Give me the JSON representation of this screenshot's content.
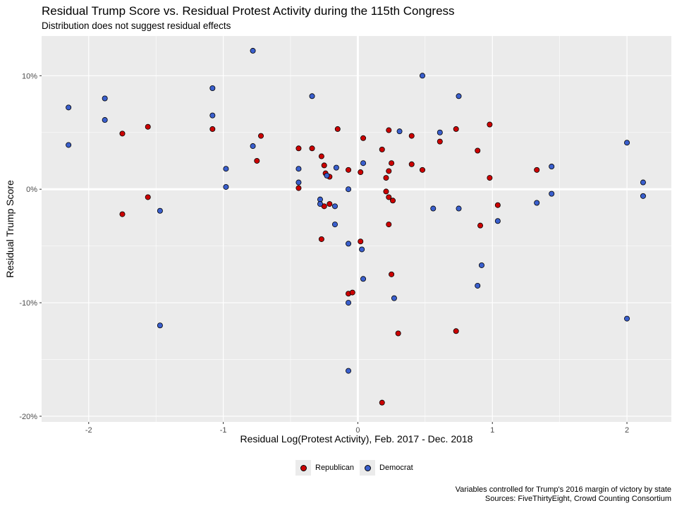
{
  "title": "Residual Trump Score vs. Residual Protest Activity during the 115th Congress",
  "subtitle": "Distribution does not suggest residual effects",
  "caption": {
    "line1": "Variables controlled for Trump's 2016 margin of victory by state",
    "line2": "Sources: FiveThirtyEight, Crowd Counting Consortium"
  },
  "chart_data": {
    "type": "scatter",
    "xlabel": "Residual Log(Protest Activity), Feb. 2017 - Dec. 2018",
    "ylabel": "Residual Trump Score",
    "xlim": [
      -2.35,
      2.33
    ],
    "ylim": [
      -0.205,
      0.135
    ],
    "x_ticks": [
      -2,
      -1,
      0,
      1,
      2
    ],
    "x_tick_labels": [
      "-2",
      "-1",
      "0",
      "1",
      "2"
    ],
    "y_ticks": [
      -0.2,
      -0.1,
      0,
      0.1
    ],
    "y_tick_labels": [
      "-20%",
      "-10%",
      "0%",
      "10%"
    ],
    "grid": true,
    "legend_position": "bottom",
    "colors": {
      "Republican": "#cc0000",
      "Democrat": "#3a5fcd",
      "panel": "#ebebeb",
      "grid": "#ffffff"
    },
    "series": [
      {
        "name": "Republican",
        "points": [
          [
            -1.75,
            0.049
          ],
          [
            -1.75,
            -0.022
          ],
          [
            -1.56,
            0.055
          ],
          [
            -1.56,
            -0.007
          ],
          [
            -1.08,
            0.053
          ],
          [
            -0.72,
            0.047
          ],
          [
            -0.75,
            0.025
          ],
          [
            -0.44,
            0.036
          ],
          [
            -0.44,
            0.001
          ],
          [
            -0.34,
            0.036
          ],
          [
            -0.27,
            0.029
          ],
          [
            -0.25,
            0.021
          ],
          [
            -0.24,
            0.014
          ],
          [
            -0.25,
            -0.015
          ],
          [
            -0.21,
            0.011
          ],
          [
            -0.21,
            -0.013
          ],
          [
            -0.27,
            -0.044
          ],
          [
            -0.15,
            0.053
          ],
          [
            -0.07,
            0.017
          ],
          [
            -0.07,
            -0.092
          ],
          [
            -0.04,
            -0.091
          ],
          [
            0.02,
            0.015
          ],
          [
            0.04,
            0.045
          ],
          [
            0.02,
            -0.046
          ],
          [
            0.18,
            0.035
          ],
          [
            0.21,
            0.01
          ],
          [
            0.21,
            -0.002
          ],
          [
            0.23,
            0.052
          ],
          [
            0.23,
            0.016
          ],
          [
            0.25,
            0.023
          ],
          [
            0.23,
            -0.007
          ],
          [
            0.26,
            -0.01
          ],
          [
            0.23,
            -0.031
          ],
          [
            0.25,
            -0.075
          ],
          [
            0.3,
            -0.127
          ],
          [
            0.18,
            -0.188
          ],
          [
            0.4,
            0.047
          ],
          [
            0.4,
            0.022
          ],
          [
            0.48,
            0.017
          ],
          [
            0.61,
            0.042
          ],
          [
            0.73,
            0.053
          ],
          [
            0.73,
            -0.125
          ],
          [
            0.89,
            0.034
          ],
          [
            0.91,
            -0.032
          ],
          [
            0.98,
            0.057
          ],
          [
            0.98,
            0.01
          ],
          [
            1.04,
            -0.014
          ],
          [
            1.33,
            0.017
          ]
        ]
      },
      {
        "name": "Democrat",
        "points": [
          [
            -2.15,
            0.072
          ],
          [
            -2.15,
            0.039
          ],
          [
            -1.88,
            0.08
          ],
          [
            -1.88,
            0.061
          ],
          [
            -1.47,
            -0.019
          ],
          [
            -1.47,
            -0.12
          ],
          [
            -1.08,
            0.089
          ],
          [
            -1.08,
            0.065
          ],
          [
            -0.98,
            0.018
          ],
          [
            -0.98,
            0.002
          ],
          [
            -0.78,
            0.122
          ],
          [
            -0.78,
            0.038
          ],
          [
            -0.34,
            0.082
          ],
          [
            -0.44,
            0.018
          ],
          [
            -0.44,
            0.006
          ],
          [
            -0.28,
            -0.009
          ],
          [
            -0.28,
            -0.013
          ],
          [
            -0.23,
            0.012
          ],
          [
            -0.16,
            0.019
          ],
          [
            -0.17,
            -0.015
          ],
          [
            -0.17,
            -0.031
          ],
          [
            -0.07,
            0.0
          ],
          [
            -0.07,
            -0.048
          ],
          [
            -0.07,
            -0.1
          ],
          [
            -0.07,
            -0.16
          ],
          [
            0.04,
            0.023
          ],
          [
            0.03,
            -0.053
          ],
          [
            0.04,
            -0.079
          ],
          [
            0.27,
            -0.096
          ],
          [
            0.31,
            0.051
          ],
          [
            0.48,
            0.1
          ],
          [
            0.56,
            -0.017
          ],
          [
            0.61,
            0.05
          ],
          [
            0.75,
            0.082
          ],
          [
            0.75,
            -0.017
          ],
          [
            0.92,
            -0.067
          ],
          [
            0.89,
            -0.085
          ],
          [
            1.04,
            -0.028
          ],
          [
            1.33,
            -0.012
          ],
          [
            1.44,
            0.02
          ],
          [
            1.44,
            -0.004
          ],
          [
            2.0,
            0.041
          ],
          [
            2.0,
            -0.114
          ],
          [
            2.12,
            0.006
          ],
          [
            2.12,
            -0.006
          ]
        ]
      }
    ]
  }
}
